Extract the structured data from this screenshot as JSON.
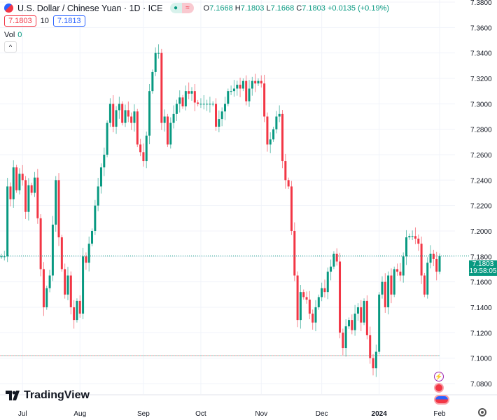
{
  "header": {
    "title": "U.S. Dollar / Chinese Yuan · 1D · ICE",
    "open_label": "O",
    "open": "7.1668",
    "high_label": "H",
    "high": "7.1803",
    "low_label": "L",
    "low": "7.1668",
    "close_label": "C",
    "close": "7.1803",
    "change": "+0.0135 (+0.19%)",
    "sell_price": "7.1803",
    "spread": "10",
    "buy_price": "7.1813",
    "pill_left": "●",
    "pill_right": "≈"
  },
  "volume": {
    "label": "Vol",
    "value": "0"
  },
  "price_tag": {
    "price": "7.1803",
    "countdown": "19:58:05"
  },
  "branding": {
    "logo_text": "TradingView"
  },
  "colors": {
    "up": "#089981",
    "down": "#f23645",
    "grid": "#f0f3fa",
    "axis_text": "#131722"
  },
  "icons": [
    "lightning-event-icon",
    "china-flag-event-icon",
    "us-flag-event-icon",
    "settings-gear-icon",
    "collapse-chevron-icon"
  ],
  "chart_data": {
    "type": "candlestick",
    "title": "U.S. Dollar / Chinese Yuan · 1D · ICE",
    "ylim": [
      7.07,
      7.38
    ],
    "yticks": [
      "7.0800",
      "7.1000",
      "7.1200",
      "7.1400",
      "7.1600",
      "7.1800",
      "7.2000",
      "7.2200",
      "7.2400",
      "7.2600",
      "7.2800",
      "7.3000",
      "7.3200",
      "7.3400",
      "7.3600",
      "7.3800"
    ],
    "xticks": [
      {
        "label": "Jul",
        "index": 7,
        "bold": false
      },
      {
        "label": "Aug",
        "index": 26,
        "bold": false
      },
      {
        "label": "Sep",
        "index": 47,
        "bold": false
      },
      {
        "label": "Oct",
        "index": 66,
        "bold": false
      },
      {
        "label": "Nov",
        "index": 86,
        "bold": false
      },
      {
        "label": "Dec",
        "index": 106,
        "bold": false
      },
      {
        "label": "2024",
        "index": 125,
        "bold": true
      },
      {
        "label": "Feb",
        "index": 145,
        "bold": false
      }
    ],
    "note": "open = previous close",
    "closes": [
      7.18,
      7.18,
      7.235,
      7.225,
      7.25,
      7.232,
      7.245,
      7.24,
      7.215,
      7.236,
      7.23,
      7.242,
      7.21,
      7.17,
      7.14,
      7.155,
      7.165,
      7.205,
      7.24,
      7.195,
      7.17,
      7.15,
      7.165,
      7.14,
      7.13,
      7.145,
      7.135,
      7.18,
      7.175,
      7.19,
      7.2,
      7.22,
      7.235,
      7.25,
      7.26,
      7.285,
      7.3,
      7.282,
      7.295,
      7.3,
      7.285,
      7.295,
      7.29,
      7.285,
      7.294,
      7.268,
      7.262,
      7.255,
      7.275,
      7.31,
      7.325,
      7.34,
      7.34,
      7.285,
      7.29,
      7.268,
      7.285,
      7.292,
      7.3,
      7.305,
      7.298,
      7.31,
      7.308,
      7.31,
      7.301,
      7.3,
      7.3,
      7.3,
      7.3,
      7.3,
      7.3,
      7.282,
      7.288,
      7.294,
      7.3,
      7.31,
      7.31,
      7.312,
      7.315,
      7.312,
      7.318,
      7.302,
      7.312,
      7.318,
      7.316,
      7.318,
      7.316,
      7.29,
      7.268,
      7.272,
      7.28,
      7.29,
      7.292,
      7.255,
      7.24,
      7.235,
      7.2,
      7.165,
      7.13,
      7.152,
      7.148,
      7.146,
      7.135,
      7.128,
      7.14,
      7.148,
      7.155,
      7.152,
      7.168,
      7.172,
      7.182,
      7.176,
      7.12,
      7.108,
      7.125,
      7.13,
      7.122,
      7.135,
      7.14,
      7.128,
      7.145,
      7.118,
      7.1,
      7.092,
      7.105,
      7.15,
      7.16,
      7.14,
      7.165,
      7.15,
      7.17,
      7.168,
      7.165,
      7.18,
      7.195,
      7.196,
      7.196,
      7.194,
      7.19,
      7.165,
      7.15,
      7.175,
      7.182,
      7.178,
      7.168,
      7.1803
    ],
    "current_price": 7.1803,
    "reference_line": 7.102
  }
}
